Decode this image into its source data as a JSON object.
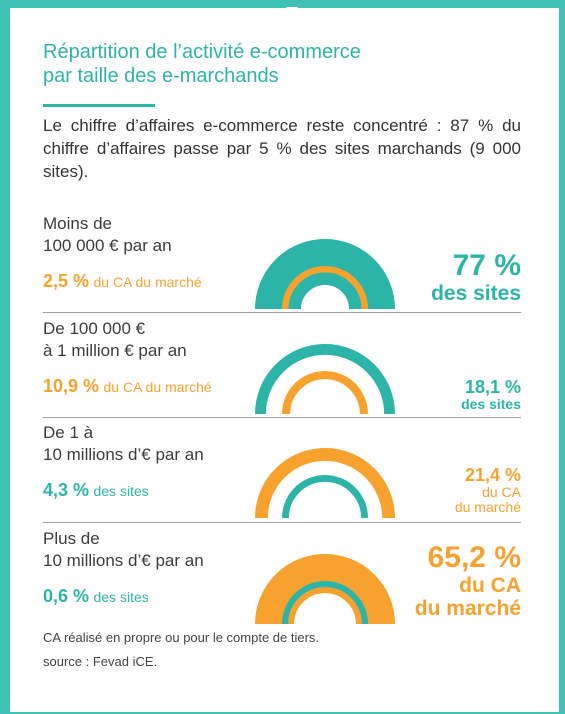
{
  "title": [
    "Répartition de l’activité e-commerce",
    "par taille des e-marchands"
  ],
  "intro": "Le chiffre d’affaires e-commerce reste concentré : 87 % du chiffre d’affaires passe par 5 % des sites marchands (9 000 sites).",
  "colors": {
    "teal": "#2db4a8",
    "orange": "#f7a22e",
    "background": "#3fc1b4"
  },
  "footnote": [
    "CA réalisé en propre ou pour le compte de tiers.",
    "source : Fevad iCE."
  ],
  "chart_data": {
    "type": "semicircle-comparison",
    "series": [
      {
        "name": "sites",
        "unit": "%"
      },
      {
        "name": "CA du marché",
        "unit": "%"
      }
    ],
    "categories": [
      {
        "label": [
          "Moins de",
          "100 000 € par an"
        ],
        "sites_pct": 77,
        "ca_pct": 2.5,
        "left_value": "2,5 %",
        "left_unit": "du CA du marché",
        "left_color": "orange",
        "right_value": "77 %",
        "right_unit": [
          "des sites"
        ],
        "right_color": "teal"
      },
      {
        "label": [
          "De 100 000 €",
          "à 1 million € par an"
        ],
        "sites_pct": 18.1,
        "ca_pct": 10.9,
        "left_value": "10,9 %",
        "left_unit": "du CA du marché",
        "left_color": "orange",
        "right_value": "18,1 %",
        "right_unit": [
          "des sites"
        ],
        "right_color": "teal"
      },
      {
        "label": [
          "De 1 à",
          "10 millions d’€ par an"
        ],
        "sites_pct": 4.3,
        "ca_pct": 21.4,
        "left_value": "4,3 %",
        "left_unit": "des sites",
        "left_color": "teal",
        "right_value": "21,4 %",
        "right_unit": [
          "du CA",
          "du marché"
        ],
        "right_color": "orange"
      },
      {
        "label": [
          "Plus de",
          "10 millions d’€ par an"
        ],
        "sites_pct": 0.6,
        "ca_pct": 65.2,
        "left_value": "0,6 %",
        "left_unit": "des sites",
        "left_color": "teal",
        "right_value": "65,2 %",
        "right_unit": [
          "du CA",
          "du marché"
        ],
        "right_color": "orange"
      }
    ]
  }
}
